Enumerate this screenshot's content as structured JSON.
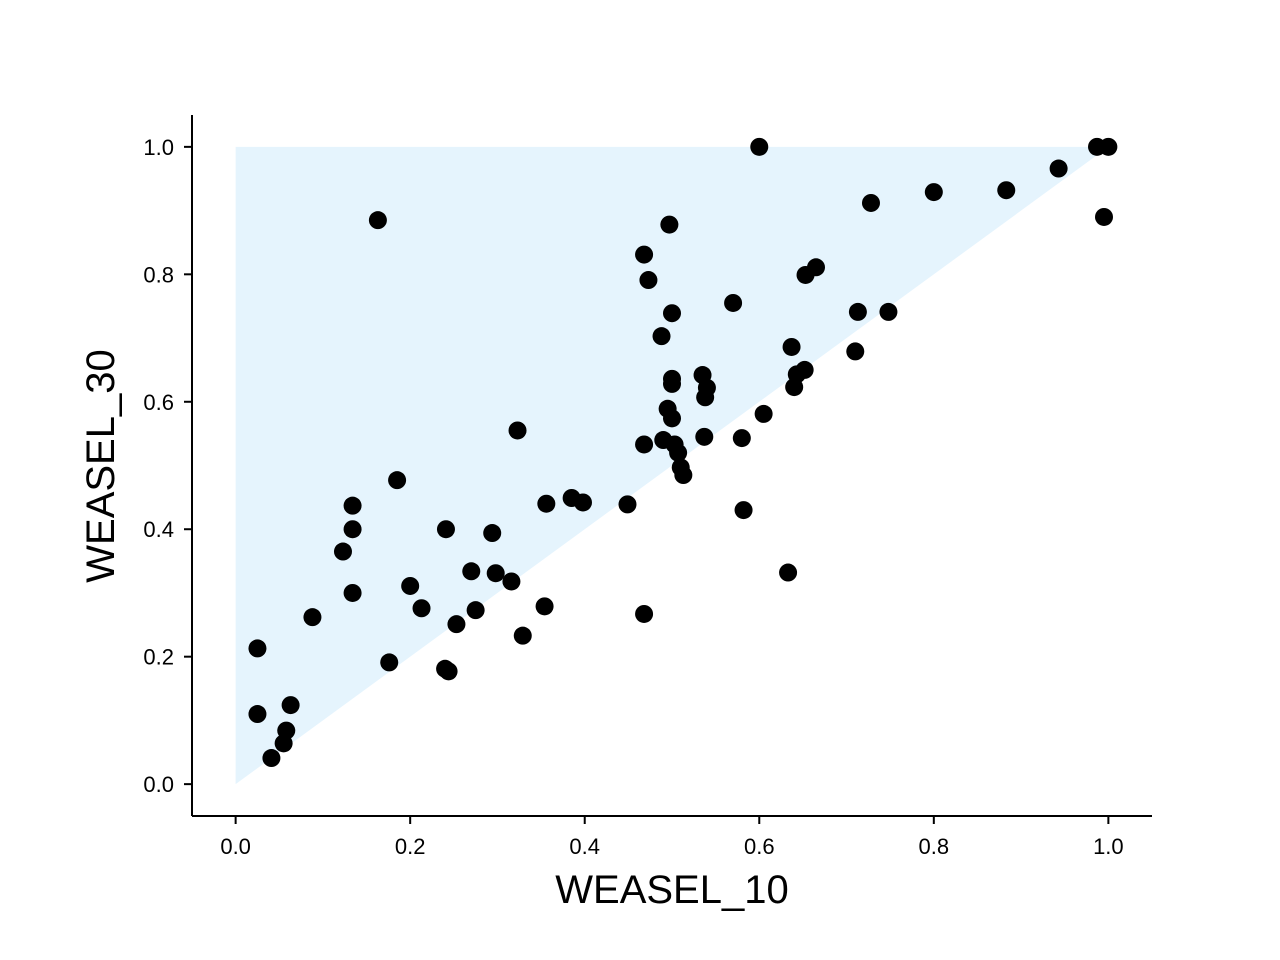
{
  "chart_data": {
    "type": "scatter",
    "title": "",
    "xlabel": "WEASEL_10",
    "ylabel": "WEASEL_30",
    "xlim": [
      -0.05,
      1.05
    ],
    "ylim": [
      -0.05,
      1.05
    ],
    "xticks": [
      "0.0",
      "0.2",
      "0.4",
      "0.6",
      "0.8",
      "1.0"
    ],
    "yticks": [
      "0.0",
      "0.2",
      "0.4",
      "0.6",
      "0.8",
      "1.0"
    ],
    "grid": false,
    "shaded_region": {
      "vertices": [
        [
          0,
          0
        ],
        [
          0,
          1
        ],
        [
          1,
          1
        ]
      ],
      "color": "#e5f4fd"
    },
    "point_color": "#000000",
    "points": [
      [
        0.6,
        1.0
      ],
      [
        0.987,
        1.0
      ],
      [
        1.0,
        1.0
      ],
      [
        0.995,
        0.89
      ],
      [
        0.943,
        0.966
      ],
      [
        0.883,
        0.932
      ],
      [
        0.8,
        0.929
      ],
      [
        0.728,
        0.912
      ],
      [
        0.163,
        0.885
      ],
      [
        0.497,
        0.878
      ],
      [
        0.468,
        0.831
      ],
      [
        0.473,
        0.791
      ],
      [
        0.665,
        0.811
      ],
      [
        0.653,
        0.799
      ],
      [
        0.57,
        0.755
      ],
      [
        0.5,
        0.739
      ],
      [
        0.713,
        0.741
      ],
      [
        0.748,
        0.741
      ],
      [
        0.488,
        0.703
      ],
      [
        0.637,
        0.686
      ],
      [
        0.71,
        0.679
      ],
      [
        0.652,
        0.65
      ],
      [
        0.643,
        0.643
      ],
      [
        0.535,
        0.642
      ],
      [
        0.5,
        0.636
      ],
      [
        0.5,
        0.628
      ],
      [
        0.54,
        0.622
      ],
      [
        0.64,
        0.623
      ],
      [
        0.538,
        0.607
      ],
      [
        0.495,
        0.589
      ],
      [
        0.605,
        0.581
      ],
      [
        0.5,
        0.574
      ],
      [
        0.323,
        0.555
      ],
      [
        0.537,
        0.545
      ],
      [
        0.58,
        0.543
      ],
      [
        0.49,
        0.54
      ],
      [
        0.468,
        0.533
      ],
      [
        0.503,
        0.533
      ],
      [
        0.507,
        0.52
      ],
      [
        0.51,
        0.497
      ],
      [
        0.513,
        0.485
      ],
      [
        0.185,
        0.477
      ],
      [
        0.385,
        0.449
      ],
      [
        0.398,
        0.442
      ],
      [
        0.356,
        0.44
      ],
      [
        0.449,
        0.439
      ],
      [
        0.134,
        0.437
      ],
      [
        0.582,
        0.43
      ],
      [
        0.134,
        0.4
      ],
      [
        0.241,
        0.4
      ],
      [
        0.294,
        0.394
      ],
      [
        0.123,
        0.365
      ],
      [
        0.27,
        0.334
      ],
      [
        0.298,
        0.331
      ],
      [
        0.633,
        0.332
      ],
      [
        0.316,
        0.318
      ],
      [
        0.2,
        0.311
      ],
      [
        0.134,
        0.3
      ],
      [
        0.213,
        0.276
      ],
      [
        0.354,
        0.279
      ],
      [
        0.275,
        0.273
      ],
      [
        0.468,
        0.267
      ],
      [
        0.088,
        0.262
      ],
      [
        0.253,
        0.251
      ],
      [
        0.329,
        0.233
      ],
      [
        0.025,
        0.213
      ],
      [
        0.176,
        0.191
      ],
      [
        0.24,
        0.181
      ],
      [
        0.244,
        0.177
      ],
      [
        0.063,
        0.124
      ],
      [
        0.025,
        0.11
      ],
      [
        0.058,
        0.084
      ],
      [
        0.055,
        0.064
      ],
      [
        0.041,
        0.041
      ]
    ]
  }
}
